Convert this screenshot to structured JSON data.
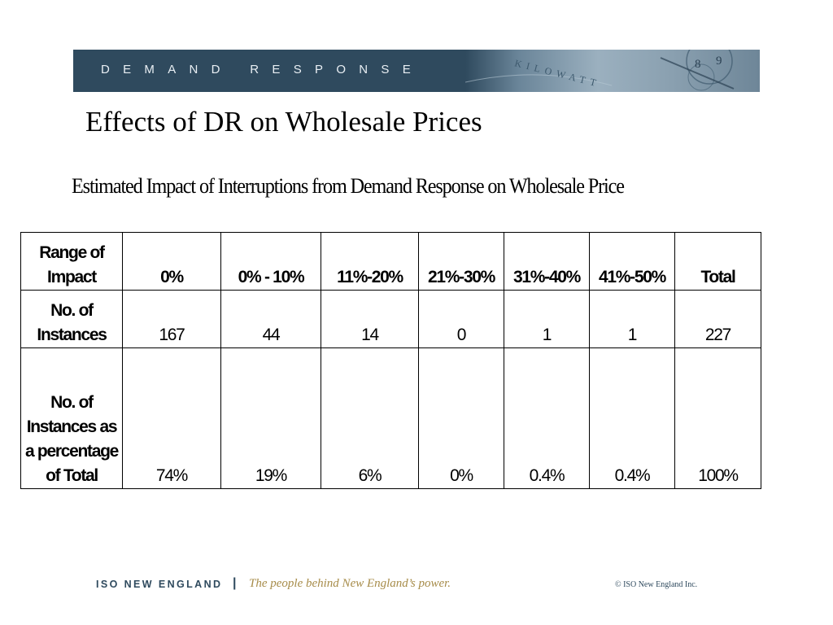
{
  "banner": {
    "label": "DEMAND RESPONSE",
    "image_words": "KILOWATT",
    "image_digits": [
      "8",
      "9"
    ]
  },
  "slide": {
    "title": "Effects of DR on Wholesale Prices",
    "table_caption": "Estimated Impact of Interruptions from Demand Response on Wholesale Price"
  },
  "table": {
    "headers": [
      "Range of Impact",
      "0%",
      "0% - 10%",
      "11%-20%",
      "21%-30%",
      "31%-40%",
      "41%-50%",
      "Total"
    ],
    "rows": [
      {
        "label": "No. of Instances",
        "values": [
          "167",
          "44",
          "14",
          "0",
          "1",
          "1",
          "227"
        ]
      },
      {
        "label": "No. of Instances as a percentage of Total",
        "values": [
          "74%",
          "19%",
          "6%",
          "0%",
          "0.4%",
          "0.4%",
          "100%"
        ]
      }
    ]
  },
  "footer": {
    "org": "ISO NEW ENGLAND",
    "separator": "|",
    "tagline": "The people behind New England’s power.",
    "copyright": "© ISO New England Inc."
  },
  "colors": {
    "banner": "#2f4a5e",
    "tagline": "#a78c4a"
  }
}
